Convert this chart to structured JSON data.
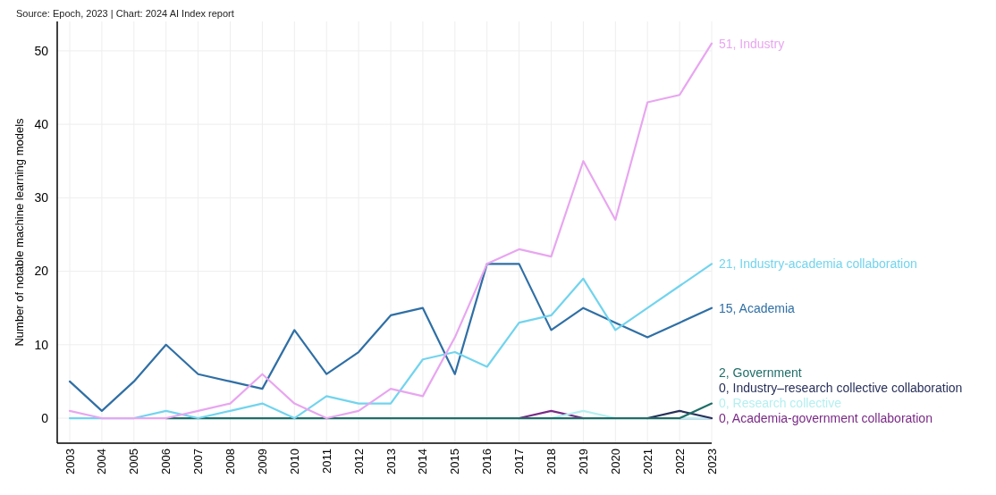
{
  "chart_data": {
    "type": "line",
    "annotations": [
      "Source: Epoch, 2023 | Chart: 2024 AI Index report"
    ],
    "ylabel": "Number of notable machine learning models",
    "categories": [
      "2003",
      "2004",
      "2005",
      "2006",
      "2007",
      "2008",
      "2009",
      "2010",
      "2011",
      "2012",
      "2013",
      "2014",
      "2015",
      "2016",
      "2017",
      "2018",
      "2019",
      "2020",
      "2021",
      "2022",
      "2023"
    ],
    "series": [
      {
        "name": "Industry",
        "color": "#e8a6f0",
        "values": [
          1,
          0,
          0,
          0,
          1,
          2,
          6,
          2,
          0,
          1,
          4,
          3,
          11,
          21,
          23,
          22,
          35,
          27,
          43,
          44,
          51
        ],
        "value_labels": [
          null,
          null,
          null,
          null,
          null,
          null,
          null,
          null,
          null,
          null,
          null,
          null,
          null,
          null,
          null,
          null,
          null,
          null,
          null,
          null,
          "51,"
        ]
      },
      {
        "name": "Industry-academia collaboration",
        "color": "#72d4ee",
        "values": [
          0,
          0,
          0,
          1,
          0,
          1,
          2,
          0,
          3,
          2,
          2,
          8,
          9,
          7,
          13,
          14,
          19,
          12,
          15,
          18,
          21
        ],
        "value_labels": [
          null,
          null,
          null,
          null,
          null,
          null,
          null,
          null,
          null,
          null,
          null,
          null,
          null,
          null,
          null,
          null,
          null,
          null,
          null,
          null,
          "21,"
        ]
      },
      {
        "name": "Academia",
        "color": "#2f6fa5",
        "values": [
          5,
          1,
          5,
          10,
          6,
          5,
          4,
          12,
          6,
          9,
          14,
          15,
          6,
          21,
          21,
          12,
          15,
          13,
          11,
          13,
          15
        ],
        "value_labels": [
          null,
          null,
          null,
          null,
          null,
          null,
          null,
          null,
          null,
          null,
          null,
          null,
          null,
          null,
          null,
          null,
          null,
          null,
          null,
          null,
          "15,"
        ]
      },
      {
        "name": "Government",
        "color": "#1f6e68",
        "values": [
          null,
          null,
          null,
          0,
          0,
          0,
          0,
          0,
          0,
          0,
          0,
          0,
          0,
          0,
          0,
          0,
          0,
          0,
          0,
          0,
          2
        ],
        "value_labels": [
          null,
          null,
          null,
          null,
          null,
          null,
          null,
          null,
          null,
          null,
          null,
          null,
          null,
          null,
          null,
          null,
          null,
          null,
          null,
          null,
          "2,"
        ]
      },
      {
        "name": "Industry–research collective collaboration",
        "color": "#28305a",
        "values": [
          null,
          null,
          null,
          null,
          null,
          null,
          null,
          null,
          null,
          null,
          null,
          null,
          null,
          null,
          null,
          null,
          null,
          null,
          0,
          1,
          0
        ],
        "value_labels": [
          null,
          null,
          null,
          null,
          null,
          null,
          null,
          null,
          null,
          null,
          null,
          null,
          null,
          null,
          null,
          null,
          null,
          null,
          null,
          null,
          "0,"
        ]
      },
      {
        "name": "Research collective",
        "color": "#b5eff0",
        "values": [
          null,
          null,
          null,
          null,
          null,
          null,
          null,
          null,
          null,
          null,
          null,
          null,
          null,
          null,
          null,
          0,
          1,
          0,
          null,
          0,
          0
        ],
        "value_labels": [
          null,
          null,
          null,
          null,
          null,
          null,
          null,
          null,
          null,
          null,
          null,
          null,
          null,
          null,
          null,
          null,
          null,
          null,
          null,
          null,
          "0,"
        ]
      },
      {
        "name": "Academia-government collaboration",
        "color": "#7a2a86",
        "values": [
          null,
          null,
          null,
          null,
          null,
          null,
          null,
          null,
          null,
          null,
          null,
          null,
          null,
          null,
          0,
          1,
          0,
          null,
          null,
          0,
          0
        ],
        "value_labels": [
          null,
          null,
          null,
          null,
          null,
          null,
          null,
          null,
          null,
          null,
          null,
          null,
          null,
          null,
          null,
          null,
          null,
          null,
          null,
          null,
          "0,"
        ]
      }
    ],
    "ylim": [
      -3.4,
      54
    ],
    "yticks": [
      0,
      10,
      20,
      30,
      40,
      50
    ],
    "grid": true,
    "marker": "none",
    "line_style": "solid"
  }
}
